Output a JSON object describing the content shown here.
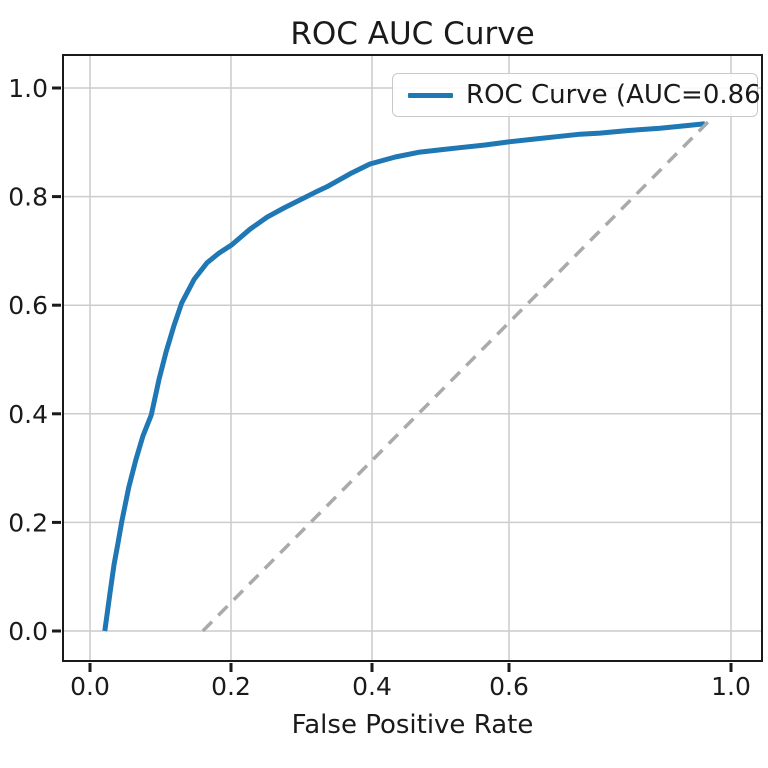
{
  "title": "ROC AUC Curve",
  "colors": {
    "roc_line": "#1f77b4",
    "diagonal_line": "#aaaaaa",
    "grid": "#cccccc",
    "spine": "#1a1a1a",
    "text": "#1a1a1a",
    "legend_border": "#c9c9c9",
    "background": "#ffffff"
  },
  "legend": {
    "entries": [
      {
        "label": "ROC Curve (AUC=0.86",
        "color": "#1f77b4",
        "style": "solid"
      }
    ],
    "position": "upper right"
  },
  "chart_data": {
    "type": "line",
    "title": "ROC AUC Curve",
    "xlabel": "False Positive Rate",
    "ylabel": "",
    "auc": 0.86,
    "grid": true,
    "xlim": [
      -0.05,
      1.05
    ],
    "ylim": [
      -0.05,
      1.05
    ],
    "x_axis": {
      "label": "False Positive Rate",
      "tick_values": [
        0.0,
        0.2,
        0.4,
        0.6,
        1.0
      ],
      "tick_labels": [
        "0.0",
        "0.2",
        "0.4",
        "0.6",
        "1.0"
      ]
    },
    "y_axis": {
      "label": "",
      "tick_values": [
        0.0,
        0.2,
        0.4,
        0.6,
        0.8,
        1.0
      ],
      "tick_labels": [
        "0.0",
        "0.2",
        "0.4",
        "0.6",
        "0.8",
        "1.0"
      ]
    },
    "series": [
      {
        "name": "ROC Curve (AUC=0.86",
        "style": "solid",
        "color": "#1f77b4",
        "width": 5,
        "points": [
          [
            0.021,
            0.0
          ],
          [
            0.028,
            0.066
          ],
          [
            0.034,
            0.122
          ],
          [
            0.04,
            0.164
          ],
          [
            0.045,
            0.201
          ],
          [
            0.055,
            0.265
          ],
          [
            0.065,
            0.315
          ],
          [
            0.075,
            0.359
          ],
          [
            0.087,
            0.398
          ],
          [
            0.098,
            0.464
          ],
          [
            0.108,
            0.514
          ],
          [
            0.119,
            0.562
          ],
          [
            0.13,
            0.604
          ],
          [
            0.148,
            0.648
          ],
          [
            0.166,
            0.678
          ],
          [
            0.183,
            0.696
          ],
          [
            0.201,
            0.711
          ],
          [
            0.227,
            0.74
          ],
          [
            0.251,
            0.762
          ],
          [
            0.275,
            0.779
          ],
          [
            0.298,
            0.794
          ],
          [
            0.318,
            0.807
          ],
          [
            0.336,
            0.818
          ],
          [
            0.369,
            0.842
          ],
          [
            0.397,
            0.86
          ],
          [
            0.434,
            0.873
          ],
          [
            0.47,
            0.882
          ],
          [
            0.499,
            0.886
          ],
          [
            0.528,
            0.89
          ],
          [
            0.565,
            0.895
          ],
          [
            0.6,
            0.901
          ],
          [
            0.647,
            0.906
          ],
          [
            0.692,
            0.911
          ],
          [
            0.728,
            0.915
          ],
          [
            0.764,
            0.917
          ],
          [
            0.818,
            0.922
          ],
          [
            0.872,
            0.926
          ],
          [
            0.913,
            0.93
          ],
          [
            0.953,
            0.934
          ]
        ]
      },
      {
        "name": "chance-diagonal",
        "style": "dashed",
        "color": "#aaaaaa",
        "width": 3.5,
        "points": [
          [
            0.16,
            0.0
          ],
          [
            0.964,
            0.943
          ]
        ]
      }
    ],
    "legend_position": "upper right"
  }
}
